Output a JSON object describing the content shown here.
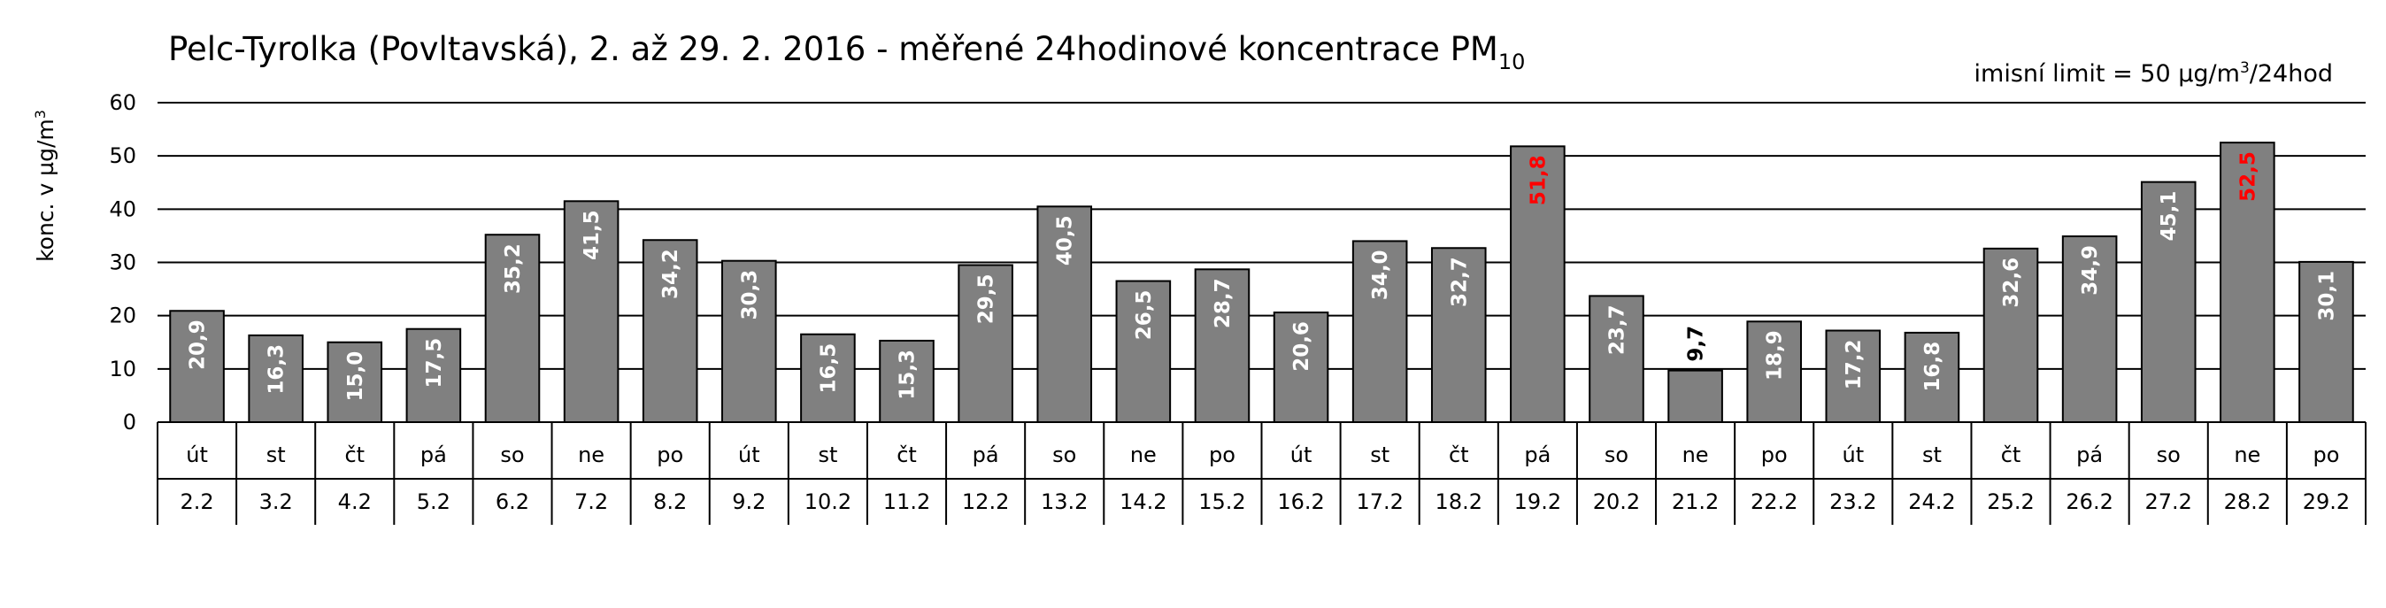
{
  "chart_data": {
    "type": "bar",
    "title": "Pelc-Tyrolka (Povltavská), 2. až 29. 2. 2016 - měřené 24hodinové koncentrace PM",
    "title_subscript": "10",
    "annotation": [
      "imisní limit = 50 µg/m",
      "3",
      "/24hod"
    ],
    "y_label": [
      "konc. v µg/m",
      "3"
    ],
    "categories": [
      "2.2",
      "3.2",
      "4.2",
      "5.2",
      "6.2",
      "7.2",
      "8.2",
      "9.2",
      "10.2",
      "11.2",
      "12.2",
      "13.2",
      "14.2",
      "15.2",
      "16.2",
      "17.2",
      "18.2",
      "19.2",
      "20.2",
      "21.2",
      "22.2",
      "23.2",
      "24.2",
      "25.2",
      "26.2",
      "27.2",
      "28.2",
      "29.2"
    ],
    "weekdays": [
      "út",
      "st",
      "čt",
      "pá",
      "so",
      "ne",
      "po",
      "út",
      "st",
      "čt",
      "pá",
      "so",
      "ne",
      "po",
      "út",
      "st",
      "čt",
      "pá",
      "so",
      "ne",
      "po",
      "út",
      "st",
      "čt",
      "pá",
      "so",
      "ne",
      "po"
    ],
    "values": [
      20.9,
      16.3,
      15.0,
      17.5,
      35.2,
      41.5,
      34.2,
      30.3,
      16.5,
      15.3,
      29.5,
      40.5,
      26.5,
      28.7,
      20.6,
      34.0,
      32.7,
      51.8,
      23.7,
      9.7,
      18.9,
      17.2,
      16.8,
      32.6,
      34.9,
      45.1,
      52.5,
      30.1
    ],
    "value_labels": [
      "20,9",
      "16,3",
      "15,0",
      "17,5",
      "35,2",
      "41,5",
      "34,2",
      "30,3",
      "16,5",
      "15,3",
      "29,5",
      "40,5",
      "26,5",
      "28,7",
      "20,6",
      "34,0",
      "32,7",
      "51,8",
      "23,7",
      "9,7",
      "18,9",
      "17,2",
      "16,8",
      "32,6",
      "34,9",
      "45,1",
      "52,5",
      "30,1"
    ],
    "value_label_colors": [
      "#ffffff",
      "#ffffff",
      "#ffffff",
      "#ffffff",
      "#ffffff",
      "#ffffff",
      "#ffffff",
      "#ffffff",
      "#ffffff",
      "#ffffff",
      "#ffffff",
      "#ffffff",
      "#ffffff",
      "#ffffff",
      "#ffffff",
      "#ffffff",
      "#ffffff",
      "#ff0000",
      "#ffffff",
      "#000000",
      "#ffffff",
      "#ffffff",
      "#ffffff",
      "#ffffff",
      "#ffffff",
      "#ffffff",
      "#ff0000",
      "#ffffff"
    ],
    "color": "#808080",
    "ylim": [
      0,
      60
    ],
    "yticks": [
      0,
      10,
      20,
      30,
      40,
      50,
      60
    ],
    "grid": true
  }
}
